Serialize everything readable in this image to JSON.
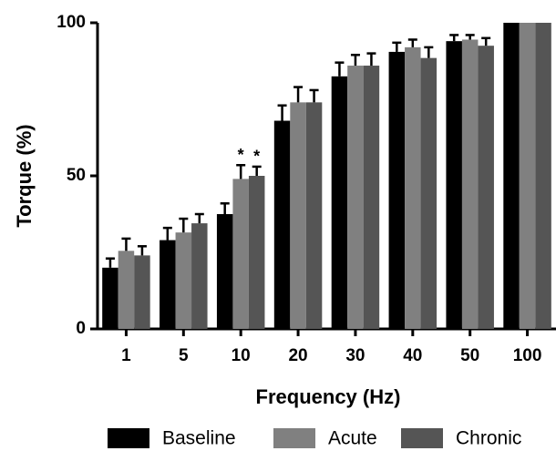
{
  "chart_data": {
    "type": "bar",
    "x_label": "Frequency (Hz)",
    "y_label": "Torque (%)",
    "categories": [
      "1",
      "5",
      "10",
      "20",
      "30",
      "40",
      "50",
      "100"
    ],
    "series": [
      {
        "name": "Baseline",
        "color": "#000000",
        "values": [
          20,
          29,
          37.5,
          68,
          82.5,
          90.5,
          94,
          100
        ],
        "errors": [
          3,
          4,
          3.5,
          5,
          4.5,
          3,
          2,
          0
        ],
        "markers": [
          null,
          null,
          null,
          null,
          null,
          null,
          null,
          null
        ]
      },
      {
        "name": "Acute",
        "color": "#808080",
        "values": [
          25.5,
          31.5,
          49,
          74,
          86,
          92,
          94.5,
          100
        ],
        "errors": [
          4,
          4.5,
          4.5,
          5,
          3.5,
          2.5,
          1.5,
          0
        ],
        "markers": [
          null,
          null,
          "*",
          null,
          null,
          null,
          null,
          null
        ]
      },
      {
        "name": "Chronic",
        "color": "#555555",
        "values": [
          24,
          34.5,
          50,
          74,
          86,
          88.5,
          92.5,
          100
        ],
        "errors": [
          3,
          3,
          3,
          4,
          4,
          3.5,
          2.5,
          0
        ],
        "markers": [
          null,
          null,
          "*",
          null,
          null,
          null,
          null,
          null
        ]
      }
    ],
    "ylim": [
      0,
      100
    ],
    "yticks": [
      0,
      50,
      100
    ],
    "legend": "bottom"
  }
}
